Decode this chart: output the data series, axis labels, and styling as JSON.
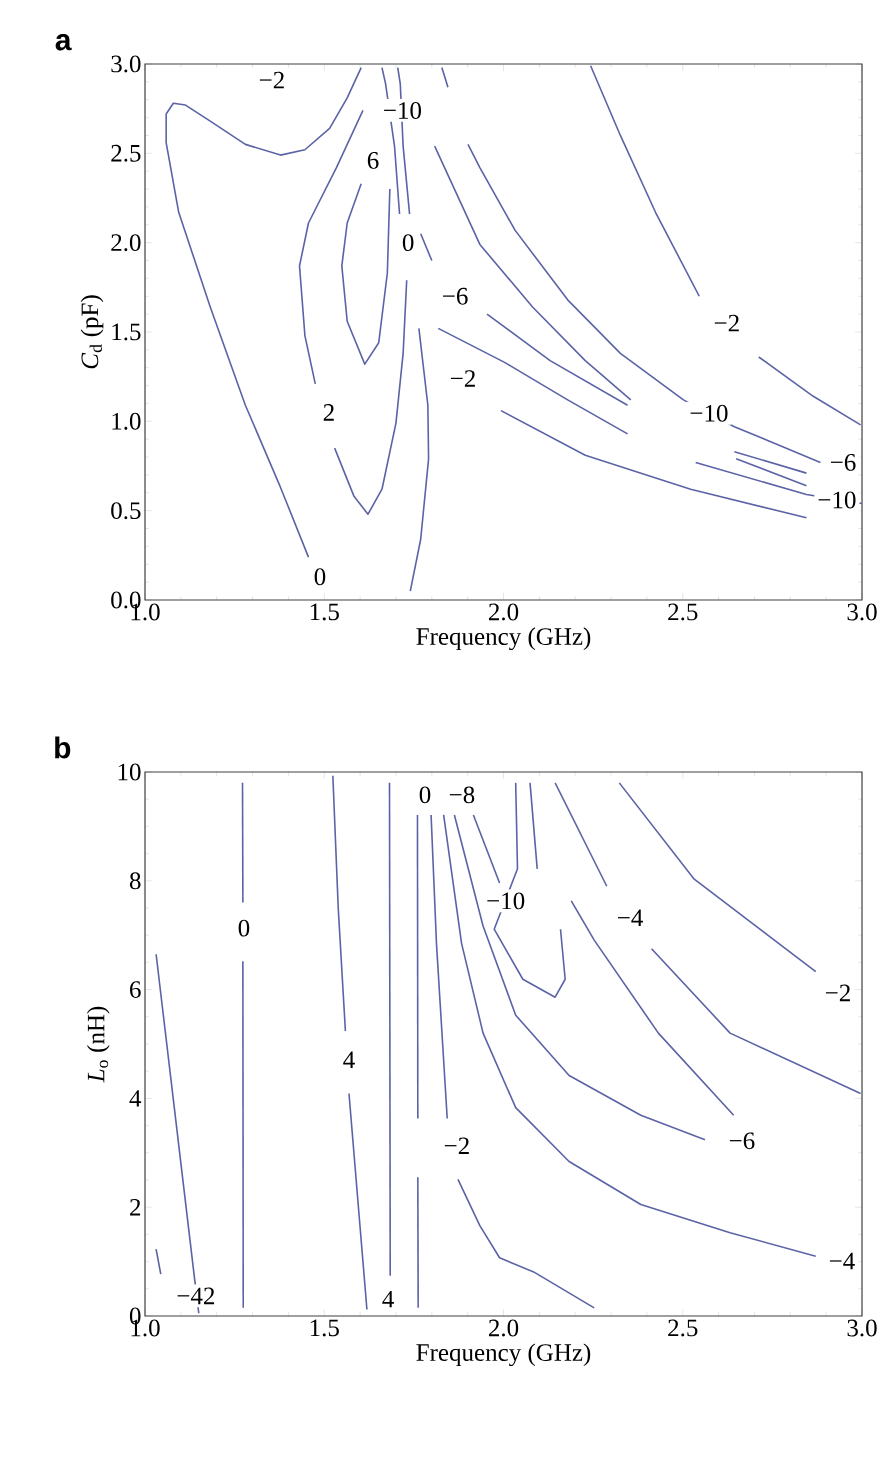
{
  "chart_data": [
    {
      "type": "line",
      "title": "a",
      "xlabel": "Frequency (GHz)",
      "ylabel": "*C*$_{d}$ (pF)",
      "xlim": [
        1,
        3
      ],
      "ylim": [
        0,
        3
      ],
      "xticks": [
        {
          "value": 1,
          "label": "1.0"
        },
        {
          "value": 1.5,
          "label": "1.5"
        },
        {
          "value": 2,
          "label": "2.0"
        },
        {
          "value": 2.5,
          "label": "2.5"
        },
        {
          "value": 3,
          "label": "3.0"
        }
      ],
      "yticks": [
        {
          "value": 0,
          "label": "0.0"
        },
        {
          "value": 0.5,
          "label": "0.5"
        },
        {
          "value": 1,
          "label": "1.0"
        },
        {
          "value": 1.5,
          "label": "1.5"
        },
        {
          "value": 2,
          "label": "2.0"
        },
        {
          "value": 2.5,
          "label": "2.5"
        },
        {
          "value": 3,
          "label": "3.0"
        }
      ],
      "series": [
        {
          "color": "#5b63a6",
          "x": [
            1.456,
            1.378,
            1.28,
            1.182,
            1.094,
            1.059,
            1.059,
            1.079,
            1.113,
            1.182,
            1.28,
            1.378,
            1.446,
            1.515,
            1.564,
            1.603
          ],
          "values": [
            0.24,
            0.63,
            1.09,
            1.64,
            2.17,
            2.56,
            2.72,
            2.78,
            2.77,
            2.68,
            2.55,
            2.49,
            2.52,
            2.64,
            2.81,
            2.98
          ]
        },
        {
          "color": "#5b63a6",
          "x": [
            1.608,
            1.534,
            1.456,
            1.431,
            1.446,
            1.475
          ],
          "values": [
            2.74,
            2.42,
            2.11,
            1.87,
            1.48,
            1.21
          ]
        },
        {
          "color": "#5b63a6",
          "x": [
            1.529,
            1.583,
            1.622,
            1.661,
            1.7,
            1.72,
            1.73
          ],
          "values": [
            0.85,
            0.58,
            0.48,
            0.62,
            0.99,
            1.38,
            1.79
          ]
        },
        {
          "color": "#5b63a6",
          "x": [
            1.603,
            1.564,
            1.549,
            1.564,
            1.613,
            1.652,
            1.676,
            1.683
          ],
          "values": [
            2.33,
            2.11,
            1.87,
            1.56,
            1.32,
            1.44,
            1.83,
            2.3
          ]
        },
        {
          "color": "#5b63a6",
          "x": [
            1.661,
            1.671,
            1.696,
            1.71
          ],
          "values": [
            2.98,
            2.89,
            2.54,
            2.16
          ]
        },
        {
          "color": "#5b63a6",
          "x": [
            1.705,
            1.712,
            1.72,
            1.738
          ],
          "values": [
            2.98,
            2.89,
            2.54,
            2.16
          ]
        },
        {
          "color": "#5b63a6",
          "x": [
            1.764,
            1.789,
            1.791,
            1.769,
            1.74
          ],
          "values": [
            1.52,
            1.09,
            0.79,
            0.34,
            0.05
          ]
        },
        {
          "color": "#5b63a6",
          "x": [
            2.243,
            2.326,
            2.424,
            2.546
          ],
          "values": [
            2.99,
            2.6,
            2.17,
            1.7
          ]
        },
        {
          "color": "#5b63a6",
          "x": [
            2.712,
            2.864,
            2.996
          ],
          "values": [
            1.36,
            1.14,
            0.98
          ]
        },
        {
          "color": "#5b63a6",
          "x": [
            1.901,
            1.934,
            2.032,
            2.179,
            2.326,
            2.502,
            2.644,
            2.884
          ],
          "values": [
            2.55,
            2.42,
            2.07,
            1.68,
            1.38,
            1.12,
            0.97,
            0.77
          ]
        },
        {
          "color": "#5b63a6",
          "x": [
            1.828,
            1.845
          ],
          "values": [
            2.98,
            2.87
          ]
        },
        {
          "color": "#5b63a6",
          "x": [
            1.808,
            1.934,
            2.081,
            2.228,
            2.355
          ],
          "values": [
            2.54,
            1.99,
            1.64,
            1.34,
            1.12
          ]
        },
        {
          "color": "#5b63a6",
          "x": [
            2.644,
            2.845
          ],
          "values": [
            0.83,
            0.71
          ]
        },
        {
          "color": "#5b63a6",
          "x": [
            1.769,
            1.8
          ],
          "values": [
            2.05,
            1.9
          ]
        },
        {
          "color": "#5b63a6",
          "x": [
            1.954,
            2.13,
            2.346
          ],
          "values": [
            1.6,
            1.34,
            1.09
          ]
        },
        {
          "color": "#5b63a6",
          "x": [
            2.649,
            2.845
          ],
          "values": [
            0.79,
            0.64
          ]
        },
        {
          "color": "#5b63a6",
          "x": [
            1.818,
            2.003,
            2.179,
            2.346
          ],
          "values": [
            1.52,
            1.33,
            1.12,
            0.93
          ]
        },
        {
          "color": "#5b63a6",
          "x": [
            2.536,
            2.845,
            3.0
          ],
          "values": [
            0.77,
            0.59,
            0.54
          ]
        },
        {
          "color": "#5b63a6",
          "x": [
            1.993,
            2.228,
            2.522,
            2.845
          ],
          "values": [
            1.06,
            0.81,
            0.62,
            0.46
          ]
        }
      ],
      "annotations": [
        {
          "text": "−2",
          "x": 1.354,
          "y": 2.91
        },
        {
          "text": "−10",
          "x": 1.718,
          "y": 2.74
        },
        {
          "text": "6",
          "x": 1.636,
          "y": 2.46
        },
        {
          "text": "0",
          "x": 1.734,
          "y": 2.0
        },
        {
          "text": "−6",
          "x": 1.865,
          "y": 1.7
        },
        {
          "text": "−2",
          "x": 1.887,
          "y": 1.24
        },
        {
          "text": "2",
          "x": 1.513,
          "y": 1.05
        },
        {
          "text": "0",
          "x": 1.488,
          "y": 0.13
        },
        {
          "text": "−2",
          "x": 2.623,
          "y": 1.55
        },
        {
          "text": "−10",
          "x": 2.573,
          "y": 1.045
        },
        {
          "text": "−6",
          "x": 2.947,
          "y": 0.77
        },
        {
          "text": "−10",
          "x": 2.93,
          "y": 0.56
        }
      ]
    },
    {
      "type": "line",
      "title": "b",
      "xlabel": "Frequency (GHz)",
      "ylabel": "*L*$_{o}$ (nH)",
      "xlim": [
        1,
        3
      ],
      "ylim": [
        0,
        10
      ],
      "xticks": [
        {
          "value": 1,
          "label": "1.0"
        },
        {
          "value": 1.5,
          "label": "1.5"
        },
        {
          "value": 2,
          "label": "2.0"
        },
        {
          "value": 2.5,
          "label": "2.5"
        },
        {
          "value": 3,
          "label": "3.0"
        }
      ],
      "yticks": [
        0,
        2,
        4,
        6,
        8,
        10
      ],
      "series": [
        {
          "color": "#5b63a6",
          "x": [
            1.031,
            1.136,
            1.15
          ],
          "values": [
            6.65,
            0.81,
            0.05
          ]
        },
        {
          "color": "#5b63a6",
          "x": [
            1.031,
            1.044
          ],
          "values": [
            1.23,
            0.77
          ]
        },
        {
          "color": "#5b63a6",
          "x": [
            1.272,
            1.273
          ],
          "values": [
            9.8,
            7.6
          ]
        },
        {
          "color": "#5b63a6",
          "x": [
            1.273,
            1.274
          ],
          "values": [
            6.52,
            0.15
          ]
        },
        {
          "color": "#5b63a6",
          "x": [
            1.524,
            1.539,
            1.559
          ],
          "values": [
            9.93,
            7.5,
            5.24
          ]
        },
        {
          "color": "#5b63a6",
          "x": [
            1.569,
            1.619
          ],
          "values": [
            4.09,
            0.12
          ]
        },
        {
          "color": "#5b63a6",
          "x": [
            1.682,
            1.684
          ],
          "values": [
            9.8,
            0.74
          ]
        },
        {
          "color": "#5b63a6",
          "x": [
            1.76,
            1.761
          ],
          "values": [
            9.21,
            3.63
          ]
        },
        {
          "color": "#5b63a6",
          "x": [
            1.761,
            1.762
          ],
          "values": [
            2.55,
            0.15
          ]
        },
        {
          "color": "#5b63a6",
          "x": [
            1.798,
            1.813,
            1.843
          ],
          "values": [
            9.21,
            6.85,
            3.63
          ]
        },
        {
          "color": "#5b63a6",
          "x": [
            1.873,
            1.934,
            1.989,
            2.084,
            2.253
          ],
          "values": [
            2.51,
            1.66,
            1.07,
            0.81,
            0.15
          ]
        },
        {
          "color": "#5b63a6",
          "x": [
            1.833,
            1.883,
            1.943,
            2.034,
            2.183,
            2.383,
            2.632,
            2.871
          ],
          "values": [
            9.21,
            6.85,
            5.2,
            3.83,
            2.84,
            2.05,
            1.53,
            1.1
          ]
        },
        {
          "color": "#5b63a6",
          "x": [
            1.863,
            1.943,
            2.034,
            2.183,
            2.383,
            2.562
          ],
          "values": [
            9.21,
            7.17,
            5.53,
            4.42,
            3.69,
            3.24
          ]
        },
        {
          "color": "#5b63a6",
          "x": [
            1.916,
            1.989
          ],
          "values": [
            9.21,
            7.96
          ]
        },
        {
          "color": "#5b63a6",
          "x": [
            2.034,
            2.039,
            1.974,
            2.054,
            2.144,
            2.172,
            2.159
          ],
          "values": [
            9.8,
            8.22,
            7.11,
            6.19,
            5.86,
            6.19,
            7.11
          ]
        },
        {
          "color": "#5b63a6",
          "x": [
            2.074,
            2.094
          ],
          "values": [
            9.8,
            8.22
          ]
        },
        {
          "color": "#5b63a6",
          "x": [
            2.189,
            2.253,
            2.432,
            2.642
          ],
          "values": [
            7.63,
            6.91,
            5.2,
            3.69
          ]
        },
        {
          "color": "#5b63a6",
          "x": [
            2.144,
            2.288
          ],
          "values": [
            9.8,
            7.9
          ]
        },
        {
          "color": "#5b63a6",
          "x": [
            2.413,
            2.632,
            2.996
          ],
          "values": [
            6.75,
            5.2,
            4.09
          ]
        },
        {
          "color": "#5b63a6",
          "x": [
            2.323,
            2.532,
            2.871
          ],
          "values": [
            9.8,
            8.03,
            6.33
          ]
        }
      ],
      "annotations": [
        {
          "text": "0",
          "x": 1.276,
          "y": 7.13
        },
        {
          "text": "4",
          "x": 1.569,
          "y": 4.71
        },
        {
          "text": "4",
          "x": 1.678,
          "y": 0.31
        },
        {
          "text": "−42",
          "x": 1.142,
          "y": 0.37
        },
        {
          "text": "0",
          "x": 1.781,
          "y": 9.58
        },
        {
          "text": "−8",
          "x": 1.884,
          "y": 9.58
        },
        {
          "text": "−10",
          "x": 2.006,
          "y": 7.63
        },
        {
          "text": "−4",
          "x": 2.353,
          "y": 7.32
        },
        {
          "text": "−2",
          "x": 2.933,
          "y": 5.94
        },
        {
          "text": "−6",
          "x": 2.665,
          "y": 3.22
        },
        {
          "text": "−2",
          "x": 1.87,
          "y": 3.13
        },
        {
          "text": "−4",
          "x": 2.944,
          "y": 1.01
        }
      ]
    }
  ]
}
